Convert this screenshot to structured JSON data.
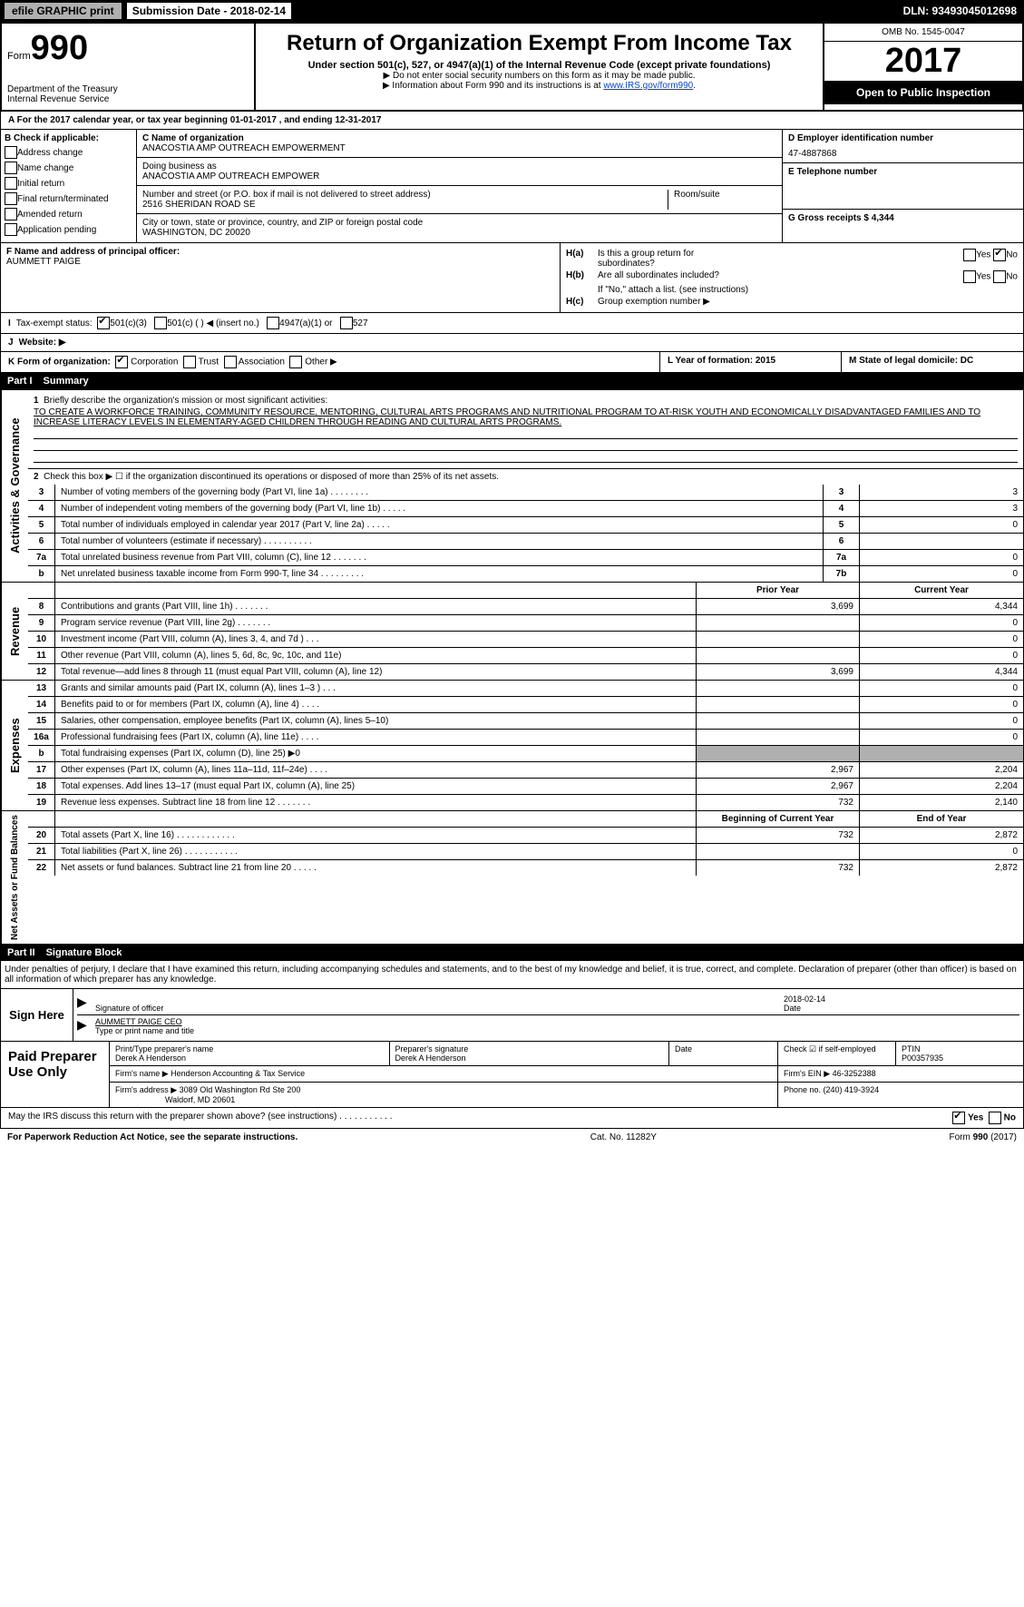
{
  "meta": {
    "efile": "efile GRAPHIC print",
    "submission_date_label": "Submission Date - 2018-02-14",
    "dln": "DLN: 93493045012698",
    "omb": "OMB No. 1545-0047",
    "tax_year": "2017",
    "open_public": "Open to Public Inspection",
    "form_label": "Form",
    "form_num": "990",
    "title": "Return of Organization Exempt From Income Tax",
    "subtitle": "Under section 501(c), 527, or 4947(a)(1) of the Internal Revenue Code (except private foundations)",
    "note1": "▶ Do not enter social security numbers on this form as it may be made public.",
    "note2": "▶ Information about Form 990 and its instructions is at ",
    "link": "www.IRS.gov/form990",
    "dept": "Department of the Treasury",
    "irs": "Internal Revenue Service"
  },
  "row_a": "A   For the 2017 calendar year, or tax year beginning 01-01-2017      , and ending 12-31-2017",
  "col_b": {
    "header": "B Check if applicable:",
    "items": [
      "Address change",
      "Name change",
      "Initial return",
      "Final return/terminated",
      "Amended return",
      "Application pending"
    ]
  },
  "col_c": {
    "name_label": "C Name of organization",
    "name": "ANACOSTIA AMP OUTREACH EMPOWERMENT",
    "dba_label": "Doing business as",
    "dba": "ANACOSTIA AMP OUTREACH EMPOWER",
    "addr_label": "Number and street (or P.O. box if mail is not delivered to street address)",
    "addr": "2516 SHERIDAN ROAD SE",
    "room_label": "Room/suite",
    "city_label": "City or town, state or province, country, and ZIP or foreign postal code",
    "city": "WASHINGTON, DC  20020"
  },
  "col_d": {
    "ein_label": "D Employer identification number",
    "ein": "47-4887868",
    "tel_label": "E Telephone number",
    "gross_label": "G Gross receipts $ 4,344"
  },
  "f": {
    "label": "F Name and address of principal officer:",
    "name": "AUMMETT PAIGE"
  },
  "h": {
    "a_label": "Is this a group return for",
    "a_label2": "subordinates?",
    "b_label": "Are all subordinates included?",
    "c_label": "Group exemption number ▶",
    "note": "If \"No,\" attach a list. (see instructions)"
  },
  "i": {
    "label": "Tax-exempt status:",
    "opts": [
      "501(c)(3)",
      "501(c) (  ) ◀ (insert no.)",
      "4947(a)(1) or",
      "527"
    ]
  },
  "j": {
    "label": "Website: ▶"
  },
  "k": {
    "label": "K Form of organization:",
    "opts": [
      "Corporation",
      "Trust",
      "Association",
      "Other ▶"
    ]
  },
  "l": {
    "label": "L Year of formation: 2015"
  },
  "m": {
    "label": "M State of legal domicile: DC"
  },
  "part1": {
    "header": "Part I",
    "title": "Summary",
    "line1_label": "Briefly describe the organization's mission or most significant activities:",
    "mission": "TO CREATE A WORKFORCE TRAINING, COMMUNITY RESOURCE, MENTORING, CULTURAL ARTS PROGRAMS AND NUTRITIONAL PROGRAM TO AT-RISK YOUTH AND ECONOMICALLY DISADVANTAGED FAMILIES AND TO INCREASE LITERACY LEVELS IN ELEMENTARY-AGED CHILDREN THROUGH READING AND CULTURAL ARTS PROGRAMS.",
    "line2": "Check this box ▶ ☐ if the organization discontinued its operations or disposed of more than 25% of its net assets."
  },
  "governance_lines": [
    {
      "n": "3",
      "d": "Number of voting members of the governing body (Part VI, line 1a)   .   .   .   .   .   .   .   .",
      "box": "3",
      "v": "3"
    },
    {
      "n": "4",
      "d": "Number of independent voting members of the governing body (Part VI, line 1b)   .   .   .   .   .",
      "box": "4",
      "v": "3"
    },
    {
      "n": "5",
      "d": "Total number of individuals employed in calendar year 2017 (Part V, line 2a)   .   .   .   .   .",
      "box": "5",
      "v": "0"
    },
    {
      "n": "6",
      "d": "Total number of volunteers (estimate if necessary)   .   .   .   .   .   .   .   .   .   .",
      "box": "6",
      "v": ""
    },
    {
      "n": "7a",
      "d": "Total unrelated business revenue from Part VIII, column (C), line 12   .   .   .   .   .   .   .",
      "box": "7a",
      "v": "0"
    },
    {
      "n": "b",
      "d": "Net unrelated business taxable income from Form 990-T, line 34   .   .   .   .   .   .   .   .   .",
      "box": "7b",
      "v": "0"
    }
  ],
  "col_headers": {
    "prior": "Prior Year",
    "current": "Current Year"
  },
  "revenue_lines": [
    {
      "n": "8",
      "d": "Contributions and grants (Part VIII, line 1h)   .   .   .   .   .   .   .",
      "p": "3,699",
      "c": "4,344"
    },
    {
      "n": "9",
      "d": "Program service revenue (Part VIII, line 2g)   .   .   .   .   .   .   .",
      "p": "",
      "c": "0"
    },
    {
      "n": "10",
      "d": "Investment income (Part VIII, column (A), lines 3, 4, and 7d )   .   .   .",
      "p": "",
      "c": "0"
    },
    {
      "n": "11",
      "d": "Other revenue (Part VIII, column (A), lines 5, 6d, 8c, 9c, 10c, and 11e)",
      "p": "",
      "c": "0"
    },
    {
      "n": "12",
      "d": "Total revenue—add lines 8 through 11 (must equal Part VIII, column (A), line 12)",
      "p": "3,699",
      "c": "4,344"
    }
  ],
  "expense_lines": [
    {
      "n": "13",
      "d": "Grants and similar amounts paid (Part IX, column (A), lines 1–3 )   .   .   .",
      "p": "",
      "c": "0"
    },
    {
      "n": "14",
      "d": "Benefits paid to or for members (Part IX, column (A), line 4)   .   .   .   .",
      "p": "",
      "c": "0"
    },
    {
      "n": "15",
      "d": "Salaries, other compensation, employee benefits (Part IX, column (A), lines 5–10)",
      "p": "",
      "c": "0"
    },
    {
      "n": "16a",
      "d": "Professional fundraising fees (Part IX, column (A), line 11e)   .   .   .   .",
      "p": "",
      "c": "0"
    },
    {
      "n": "b",
      "d": "Total fundraising expenses (Part IX, column (D), line 25) ▶0",
      "p": "shaded",
      "c": "shaded"
    },
    {
      "n": "17",
      "d": "Other expenses (Part IX, column (A), lines 11a–11d, 11f–24e)   .   .   .   .",
      "p": "2,967",
      "c": "2,204"
    },
    {
      "n": "18",
      "d": "Total expenses. Add lines 13–17 (must equal Part IX, column (A), line 25)",
      "p": "2,967",
      "c": "2,204"
    },
    {
      "n": "19",
      "d": "Revenue less expenses. Subtract line 18 from line 12   .   .   .   .   .   .   .",
      "p": "732",
      "c": "2,140"
    }
  ],
  "col_headers2": {
    "begin": "Beginning of Current Year",
    "end": "End of Year"
  },
  "net_lines": [
    {
      "n": "20",
      "d": "Total assets (Part X, line 16)   .   .   .   .   .   .   .   .   .   .   .   .",
      "p": "732",
      "c": "2,872"
    },
    {
      "n": "21",
      "d": "Total liabilities (Part X, line 26)   .   .   .   .   .   .   .   .   .   .   .",
      "p": "",
      "c": "0"
    },
    {
      "n": "22",
      "d": "Net assets or fund balances. Subtract line 21 from line 20   .   .   .   .   .",
      "p": "732",
      "c": "2,872"
    }
  ],
  "part2": {
    "header": "Part II",
    "title": "Signature Block",
    "penalties": "Under penalties of perjury, I declare that I have examined this return, including accompanying schedules and statements, and to the best of my knowledge and belief, it is true, correct, and complete. Declaration of preparer (other than officer) is based on all information of which preparer has any knowledge."
  },
  "sign": {
    "here": "Sign Here",
    "sig_label": "Signature of officer",
    "date": "2018-02-14",
    "date_label": "Date",
    "name": "AUMMETT PAIGE CEO",
    "name_label": "Type or print name and title"
  },
  "preparer": {
    "label": "Paid Preparer Use Only",
    "print_label": "Print/Type preparer's name",
    "print_name": "Derek A Henderson",
    "sig_label": "Preparer's signature",
    "sig": "Derek A Henderson",
    "date_label": "Date",
    "check_label": "Check ☑ if self-employed",
    "ptin_label": "PTIN",
    "ptin": "P00357935",
    "firm_name_label": "Firm's name     ▶",
    "firm_name": "Henderson Accounting & Tax Service",
    "firm_ein_label": "Firm's EIN ▶ 46-3252388",
    "firm_addr_label": "Firm's address ▶",
    "firm_addr": "3089 Old Washington Rd Ste 200",
    "firm_city": "Waldorf, MD  20601",
    "phone_label": "Phone no. (240) 419-3924"
  },
  "discuss": "May the IRS discuss this return with the preparer shown above? (see instructions)   .   .   .   .   .   .   .   .   .   .   .",
  "footer": {
    "pra": "For Paperwork Reduction Act Notice, see the separate instructions.",
    "cat": "Cat. No. 11282Y",
    "form": "Form 990 (2017)"
  },
  "labels": {
    "activities": "Activities & Governance",
    "revenue": "Revenue",
    "expenses": "Expenses",
    "net": "Net Assets or Fund Balances"
  }
}
